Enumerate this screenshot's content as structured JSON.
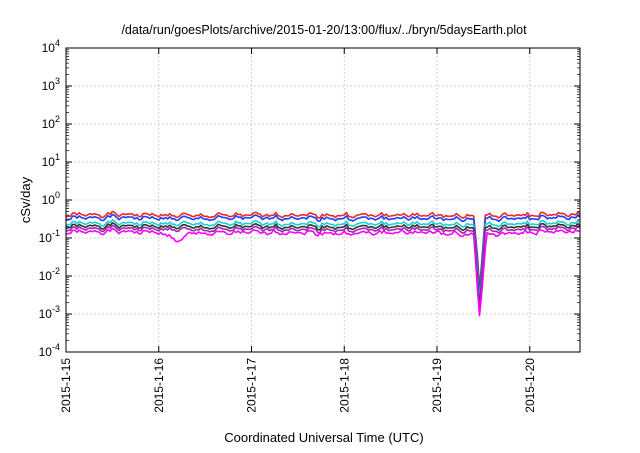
{
  "chart_data": {
    "type": "line",
    "title": "/data/run/goesPlots/archive/2015-01-20/13:00/flux/../bryn/5daysEarth.plot",
    "xlabel": "Coordinated Universal Time (UTC)",
    "ylabel": "cSv/day",
    "yscale": "log",
    "ylim": [
      0.0001,
      10000
    ],
    "xlim": [
      "2015-01-15",
      "2015-01-20T13:00"
    ],
    "x_ticks": [
      "2015-1-15",
      "2015-1-16",
      "2015-1-17",
      "2015-1-18",
      "2015-1-19",
      "2015-1-20"
    ],
    "y_ticks": [
      {
        "value": 0.0001,
        "base": "10",
        "exp": "-4"
      },
      {
        "value": 0.001,
        "base": "10",
        "exp": "-3"
      },
      {
        "value": 0.01,
        "base": "10",
        "exp": "-2"
      },
      {
        "value": 0.1,
        "base": "10",
        "exp": "-1"
      },
      {
        "value": 1,
        "base": "10",
        "exp": "0"
      },
      {
        "value": 10,
        "base": "10",
        "exp": "1"
      },
      {
        "value": 100,
        "base": "10",
        "exp": "2"
      },
      {
        "value": 1000,
        "base": "10",
        "exp": "3"
      },
      {
        "value": 10000,
        "base": "10",
        "exp": "4"
      }
    ],
    "grid": true,
    "legend": "none",
    "series": [
      {
        "color": "#e8282a",
        "baseline": 0.4,
        "points": [
          [
            "2015-01-15T00:00",
            0.4
          ],
          [
            "2015-01-15T12:00",
            0.42
          ],
          [
            "2015-01-16T00:00",
            0.4
          ],
          [
            "2015-01-16T12:00",
            0.38
          ],
          [
            "2015-01-17T00:00",
            0.4
          ],
          [
            "2015-01-17T12:00",
            0.41
          ],
          [
            "2015-01-18T00:00",
            0.39
          ],
          [
            "2015-01-18T12:00",
            0.4
          ],
          [
            "2015-01-19T00:00",
            0.4
          ],
          [
            "2015-01-19T09:30",
            0.38
          ],
          [
            "2015-01-19T10:30",
            0.03
          ],
          [
            "2015-01-19T11:00",
            0.005
          ],
          [
            "2015-01-19T11:30",
            0.02
          ],
          [
            "2015-01-19T12:30",
            0.38
          ],
          [
            "2015-01-20T00:00",
            0.4
          ],
          [
            "2015-01-20T13:00",
            0.42
          ]
        ]
      },
      {
        "color": "#1f3cff",
        "baseline": 0.33,
        "points": [
          [
            "2015-01-15T00:00",
            0.33
          ],
          [
            "2015-01-15T12:00",
            0.35
          ],
          [
            "2015-01-16T00:00",
            0.33
          ],
          [
            "2015-01-16T12:00",
            0.32
          ],
          [
            "2015-01-17T00:00",
            0.34
          ],
          [
            "2015-01-17T12:00",
            0.34
          ],
          [
            "2015-01-18T00:00",
            0.32
          ],
          [
            "2015-01-18T12:00",
            0.33
          ],
          [
            "2015-01-19T00:00",
            0.33
          ],
          [
            "2015-01-19T09:30",
            0.31
          ],
          [
            "2015-01-19T10:30",
            0.02
          ],
          [
            "2015-01-19T11:00",
            0.003
          ],
          [
            "2015-01-19T11:30",
            0.015
          ],
          [
            "2015-01-19T12:30",
            0.31
          ],
          [
            "2015-01-20T00:00",
            0.33
          ],
          [
            "2015-01-20T13:00",
            0.35
          ]
        ]
      },
      {
        "color": "#1ad0d0",
        "baseline": 0.24,
        "points": [
          [
            "2015-01-15T00:00",
            0.24
          ],
          [
            "2015-01-15T12:00",
            0.25
          ],
          [
            "2015-01-16T00:00",
            0.24
          ],
          [
            "2015-01-16T12:00",
            0.23
          ],
          [
            "2015-01-17T00:00",
            0.24
          ],
          [
            "2015-01-17T12:00",
            0.24
          ],
          [
            "2015-01-18T00:00",
            0.23
          ],
          [
            "2015-01-18T12:00",
            0.24
          ],
          [
            "2015-01-19T00:00",
            0.24
          ],
          [
            "2015-01-19T09:30",
            0.22
          ],
          [
            "2015-01-19T10:30",
            0.012
          ],
          [
            "2015-01-19T11:00",
            0.002
          ],
          [
            "2015-01-19T11:30",
            0.01
          ],
          [
            "2015-01-19T12:30",
            0.22
          ],
          [
            "2015-01-20T00:00",
            0.24
          ],
          [
            "2015-01-20T13:00",
            0.25
          ]
        ]
      },
      {
        "color": "#333333",
        "baseline": 0.2,
        "points": [
          [
            "2015-01-15T00:00",
            0.2
          ],
          [
            "2015-01-15T12:00",
            0.21
          ],
          [
            "2015-01-16T00:00",
            0.2
          ],
          [
            "2015-01-16T12:00",
            0.19
          ],
          [
            "2015-01-17T00:00",
            0.2
          ],
          [
            "2015-01-17T12:00",
            0.2
          ],
          [
            "2015-01-18T00:00",
            0.19
          ],
          [
            "2015-01-18T12:00",
            0.2
          ],
          [
            "2015-01-19T00:00",
            0.2
          ],
          [
            "2015-01-19T09:30",
            0.18
          ],
          [
            "2015-01-19T10:30",
            0.008
          ],
          [
            "2015-01-19T11:00",
            0.0015
          ],
          [
            "2015-01-19T11:30",
            0.007
          ],
          [
            "2015-01-19T12:30",
            0.18
          ],
          [
            "2015-01-20T00:00",
            0.2
          ],
          [
            "2015-01-20T13:00",
            0.21
          ]
        ]
      },
      {
        "color": "#9a2ab0",
        "baseline": 0.17,
        "points": [
          [
            "2015-01-15T00:00",
            0.17
          ],
          [
            "2015-01-15T12:00",
            0.18
          ],
          [
            "2015-01-16T00:00",
            0.17
          ],
          [
            "2015-01-16T12:00",
            0.16
          ],
          [
            "2015-01-17T00:00",
            0.17
          ],
          [
            "2015-01-17T12:00",
            0.17
          ],
          [
            "2015-01-18T00:00",
            0.16
          ],
          [
            "2015-01-18T12:00",
            0.17
          ],
          [
            "2015-01-19T00:00",
            0.17
          ],
          [
            "2015-01-19T09:30",
            0.15
          ],
          [
            "2015-01-19T10:30",
            0.006
          ],
          [
            "2015-01-19T11:00",
            0.0012
          ],
          [
            "2015-01-19T11:30",
            0.005
          ],
          [
            "2015-01-19T12:30",
            0.15
          ],
          [
            "2015-01-20T00:00",
            0.17
          ],
          [
            "2015-01-20T13:00",
            0.18
          ]
        ]
      },
      {
        "color": "#ff00ff",
        "baseline": 0.14,
        "points": [
          [
            "2015-01-15T00:00",
            0.14
          ],
          [
            "2015-01-15T12:00",
            0.15
          ],
          [
            "2015-01-16T00:00",
            0.14
          ],
          [
            "2015-01-16T06:00",
            0.08
          ],
          [
            "2015-01-16T08:00",
            0.14
          ],
          [
            "2015-01-16T12:00",
            0.13
          ],
          [
            "2015-01-17T00:00",
            0.14
          ],
          [
            "2015-01-17T12:00",
            0.14
          ],
          [
            "2015-01-18T00:00",
            0.13
          ],
          [
            "2015-01-18T12:00",
            0.14
          ],
          [
            "2015-01-19T00:00",
            0.14
          ],
          [
            "2015-01-19T09:30",
            0.12
          ],
          [
            "2015-01-19T10:30",
            0.004
          ],
          [
            "2015-01-19T11:00",
            0.0009
          ],
          [
            "2015-01-19T11:30",
            0.003
          ],
          [
            "2015-01-19T12:30",
            0.05
          ],
          [
            "2015-01-19T13:00",
            0.12
          ],
          [
            "2015-01-20T00:00",
            0.14
          ],
          [
            "2015-01-20T13:00",
            0.15
          ]
        ]
      }
    ]
  }
}
